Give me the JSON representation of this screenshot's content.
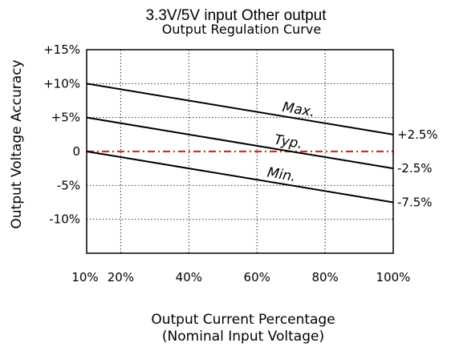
{
  "chart_data": {
    "type": "line",
    "title": "3.3V/5V input Other output",
    "subtitle": "Output Regulation Curve",
    "ylabel": "Output Voltage Accuracy",
    "xlabel_line1": "Output Current Percentage",
    "xlabel_line2": "(Nominal Input Voltage)",
    "xlim": [
      10,
      100
    ],
    "ylim": [
      -15,
      15
    ],
    "x_tick_values": [
      10,
      20,
      40,
      60,
      80,
      100
    ],
    "x_tick_labels": [
      "10%",
      "20%",
      "40%",
      "60%",
      "80%",
      "100%"
    ],
    "y_tick_values": [
      15,
      10,
      5,
      0,
      -5,
      -10
    ],
    "y_tick_labels": [
      "+15%",
      "+10%",
      "+5%",
      "0",
      "-5%",
      "-10%"
    ],
    "grid": true,
    "series": [
      {
        "name": "Max.",
        "x": [
          10,
          100
        ],
        "values": [
          10,
          2.5
        ],
        "end_label": "+2.5%"
      },
      {
        "name": "Typ.",
        "x": [
          10,
          100
        ],
        "values": [
          5,
          -2.5
        ],
        "end_label": "-2.5%"
      },
      {
        "name": "Min.",
        "x": [
          10,
          100
        ],
        "values": [
          0,
          -7.5
        ],
        "end_label": "-7.5%"
      }
    ],
    "reference_line": {
      "y": 0,
      "color": "#c0392b"
    }
  }
}
